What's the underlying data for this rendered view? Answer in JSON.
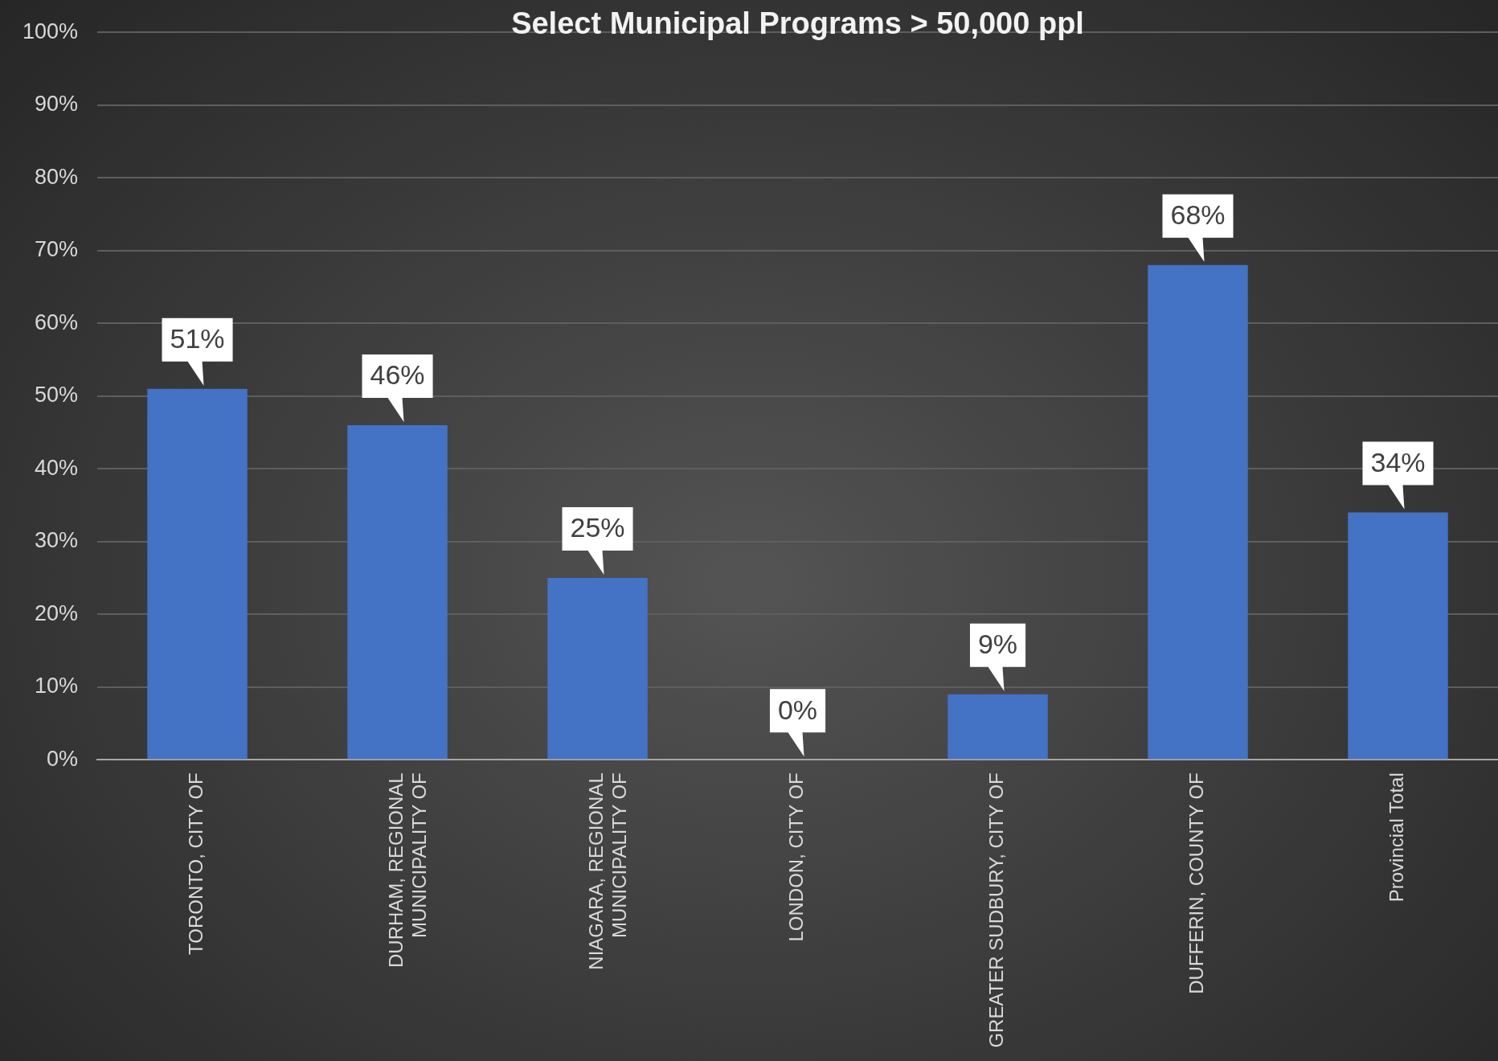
{
  "chart_data": {
    "type": "bar",
    "title": "Select Municipal Programs > 50,000 ppl",
    "categories": [
      "TORONTO, CITY OF",
      "DURHAM, REGIONAL MUNICIPALITY OF",
      "NIAGARA, REGIONAL MUNICIPALITY OF",
      "LONDON, CITY OF",
      "GREATER SUDBURY, CITY OF",
      "DUFFERIN, COUNTY OF",
      "Provincial Total"
    ],
    "values": [
      51,
      46,
      25,
      0,
      9,
      68,
      34
    ],
    "color": "#4472c4",
    "ylim": [
      0,
      100
    ],
    "yticks": [
      {
        "value": 0,
        "label": "0%"
      },
      {
        "value": 10,
        "label": "10%"
      },
      {
        "value": 20,
        "label": "20%"
      },
      {
        "value": 30,
        "label": "30%"
      },
      {
        "value": 40,
        "label": "40%"
      },
      {
        "value": 50,
        "label": "50%"
      },
      {
        "value": 60,
        "label": "60%"
      },
      {
        "value": 70,
        "label": "70%"
      },
      {
        "value": 80,
        "label": "80%"
      },
      {
        "value": 90,
        "label": "90%"
      },
      {
        "value": 100,
        "label": "100%"
      }
    ],
    "grid": "y",
    "legend": false,
    "data_labels": true,
    "value_labels": [
      "51%",
      "46%",
      "25%",
      "0%",
      "9%",
      "68%",
      "34%"
    ]
  }
}
